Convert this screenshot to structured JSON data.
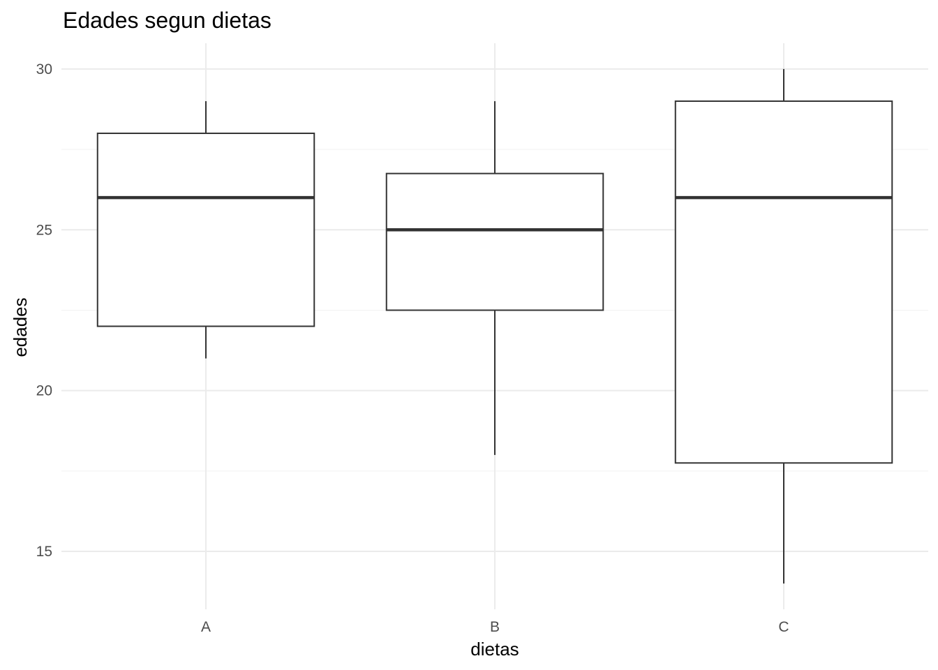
{
  "chart_data": {
    "type": "boxplot",
    "title": "Edades segun dietas",
    "xlabel": "dietas",
    "ylabel": "edades",
    "categories": [
      "A",
      "B",
      "C"
    ],
    "boxes": [
      {
        "category": "A",
        "min": 21,
        "q1": 22,
        "median": 26,
        "q3": 28,
        "max": 29
      },
      {
        "category": "B",
        "min": 18,
        "q1": 22.5,
        "median": 25,
        "q3": 26.75,
        "max": 29
      },
      {
        "category": "C",
        "min": 14,
        "q1": 17.75,
        "median": 26,
        "q3": 29,
        "max": 30
      }
    ],
    "ylim": [
      13.2,
      30.8
    ],
    "yticks": [
      15,
      20,
      25,
      30
    ],
    "grid": true,
    "colors": {
      "box_stroke": "#333333",
      "box_fill": "#ffffff",
      "grid": "#ebebeb"
    }
  }
}
